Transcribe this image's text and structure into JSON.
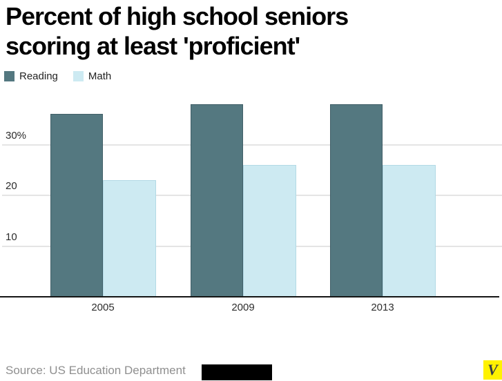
{
  "header": {
    "title_lines": [
      "Percent of high school seniors",
      "scoring at least 'proficient'"
    ]
  },
  "chart_data": {
    "type": "bar",
    "title": "Percent of high school seniors scoring at least 'proficient'",
    "categories": [
      "2005",
      "2009",
      "2013"
    ],
    "series": [
      {
        "name": "Reading",
        "color": "#547880",
        "border_color": "#415f68",
        "values": [
          36,
          38,
          38
        ]
      },
      {
        "name": "Math",
        "color": "#cdeaf2",
        "border_color": "#b2d9e5",
        "values": [
          23,
          26,
          26
        ]
      }
    ],
    "yticks": [
      {
        "value": 10,
        "label": "10"
      },
      {
        "value": 20,
        "label": "20"
      },
      {
        "value": 30,
        "label": "30%"
      }
    ],
    "ylim": [
      0,
      40
    ],
    "unit": "%",
    "grid": true,
    "legend_position": "top-left"
  },
  "footer": {
    "source": "Source: US Education Department",
    "brand": "V",
    "brand_bg_color": "#fff200",
    "brand_text_color": "#363c49"
  }
}
